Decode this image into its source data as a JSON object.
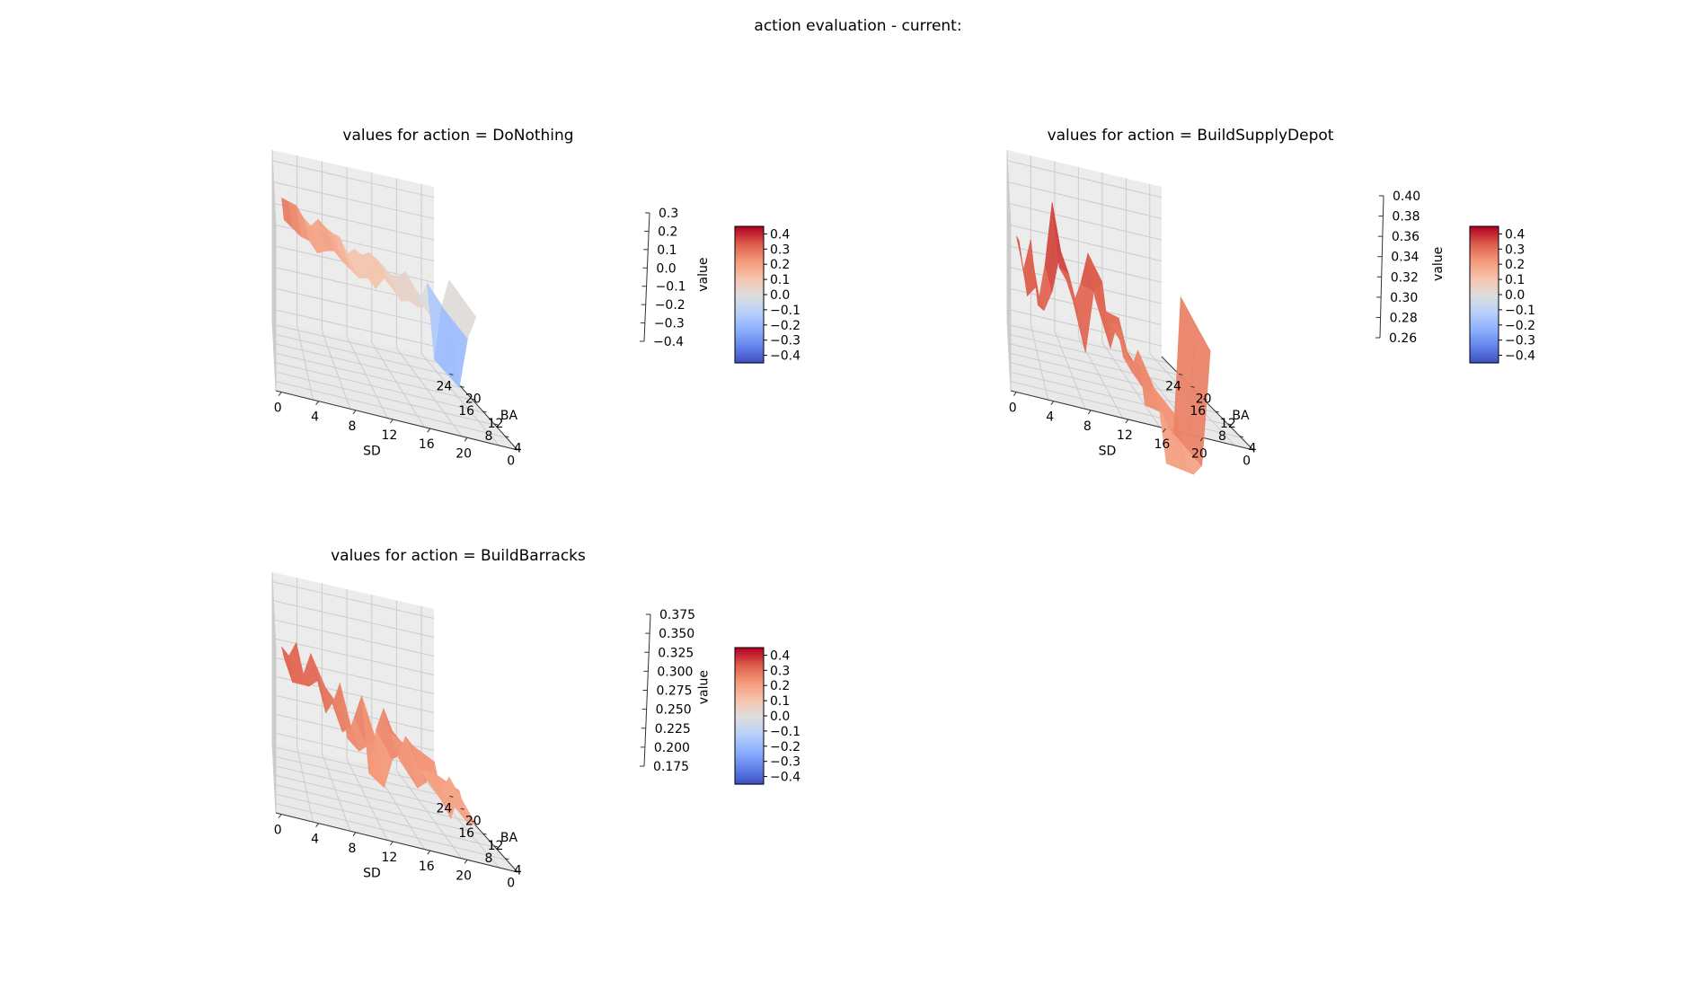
{
  "suptitle": "action evaluation - current:",
  "colorbar": {
    "ticks": [
      "0.4",
      "0.3",
      "0.2",
      "0.1",
      "0.0",
      "−0.1",
      "−0.2",
      "−0.3",
      "−0.4"
    ],
    "vmin": -0.45,
    "vmax": 0.45,
    "colormap": "coolwarm"
  },
  "chart_data": [
    {
      "type": "surface3d",
      "title": "values for action = DoNothing",
      "xlabel": "SD",
      "ylabel": "BA",
      "zlabel": "value",
      "xticks": [
        "0",
        "4",
        "8",
        "12",
        "16",
        "20"
      ],
      "yticks": [
        "0",
        "4",
        "8",
        "12",
        "16",
        "20",
        "24"
      ],
      "zticks": [
        "0.3",
        "0.2",
        "0.1",
        "0.0",
        "−0.1",
        "−0.2",
        "−0.3",
        "−0.4"
      ],
      "zlim": [
        -0.45,
        0.35
      ],
      "values": [
        0.29,
        0.27,
        0.25,
        0.22,
        0.18,
        0.21,
        0.2,
        0.17,
        0.15,
        0.1,
        0.12,
        0.09,
        0.13,
        0.1,
        0.06,
        0.05,
        0.04,
        0.06,
        0.02,
        -0.05,
        0.03,
        -0.3,
        -0.05,
        0.07
      ]
    },
    {
      "type": "surface3d",
      "title": "values for action = BuildSupplyDepot",
      "xlabel": "SD",
      "ylabel": "BA",
      "zlabel": "value",
      "xticks": [
        "0",
        "4",
        "8",
        "12",
        "16",
        "20"
      ],
      "yticks": [
        "0",
        "4",
        "8",
        "12",
        "16",
        "20",
        "24"
      ],
      "zticks": [
        "0.40",
        "0.38",
        "0.36",
        "0.34",
        "0.32",
        "0.30",
        "0.28",
        "0.26"
      ],
      "zlim": [
        0.25,
        0.41
      ],
      "values": [
        0.37,
        0.33,
        0.35,
        0.31,
        0.34,
        0.39,
        0.35,
        0.33,
        0.3,
        0.34,
        0.36,
        0.31,
        0.32,
        0.3,
        0.29,
        0.28,
        0.26,
        0.27,
        0.24,
        0.25,
        0.22,
        0.19,
        0.21,
        0.33
      ]
    },
    {
      "type": "surface3d",
      "title": "values for action = BuildBarracks",
      "xlabel": "SD",
      "ylabel": "BA",
      "zlabel": "value",
      "xticks": [
        "0",
        "4",
        "8",
        "12",
        "16",
        "20"
      ],
      "yticks": [
        "0",
        "4",
        "8",
        "12",
        "16",
        "20",
        "24"
      ],
      "zticks": [
        "0.375",
        "0.350",
        "0.325",
        "0.300",
        "0.275",
        "0.250",
        "0.225",
        "0.200",
        "0.175"
      ],
      "zlim": [
        0.16,
        0.385
      ],
      "values": [
        0.34,
        0.32,
        0.33,
        0.31,
        0.33,
        0.3,
        0.3,
        0.27,
        0.29,
        0.24,
        0.26,
        0.28,
        0.2,
        0.25,
        0.27,
        0.26,
        0.22,
        0.24,
        0.25,
        0.21,
        0.2,
        0.22,
        0.19,
        0.2
      ]
    }
  ]
}
